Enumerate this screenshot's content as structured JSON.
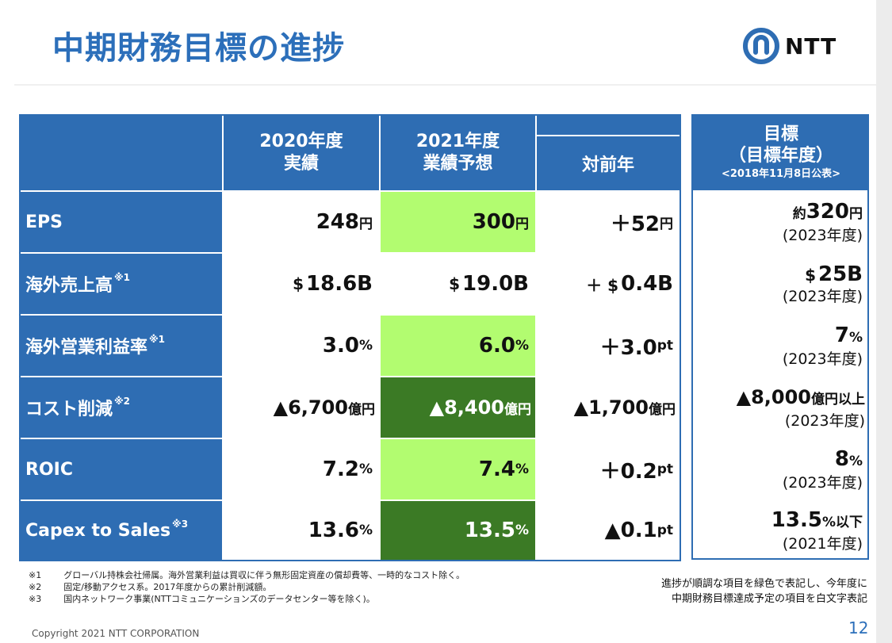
{
  "title": "中期財務目標の進捗",
  "logo_text": "NTT",
  "header": {
    "fy2020_line1": "2020年度",
    "fy2020_line2": "実績",
    "fy2021_line1": "2021年度",
    "fy2021_line2": "業績予想",
    "yoy": "対前年",
    "target_line1": "目標",
    "target_line2": "（目標年度）",
    "target_line3": "<2018年11月8日公表>"
  },
  "rows": [
    {
      "label": "EPS",
      "note": "",
      "fy2020": {
        "num": "248",
        "unit": "円"
      },
      "fy2021": {
        "num": "300",
        "unit": "円"
      },
      "yoy": {
        "num": "＋52",
        "unit": "円"
      },
      "target": {
        "prefix": "約",
        "num": "320",
        "unit": "円",
        "year": "(2023年度)"
      }
    },
    {
      "label": "海外売上高",
      "note": "※1",
      "fy2020": {
        "pre": "$",
        "num": "18.6B"
      },
      "fy2021": {
        "pre": "$",
        "num": "19.0B"
      },
      "yoy": {
        "pre": "＋ $",
        "num": "0.4B"
      },
      "target": {
        "pre": "$",
        "num": "25B",
        "year": "(2023年度)"
      }
    },
    {
      "label": "海外営業利益率",
      "note": "※1",
      "fy2020": {
        "num": "3.0",
        "unit": "%"
      },
      "fy2021": {
        "num": "6.0",
        "unit": "%"
      },
      "yoy": {
        "num": "＋3.0",
        "unit": "pt"
      },
      "target": {
        "num": "7",
        "unit": "%",
        "year": "(2023年度)"
      }
    },
    {
      "label": "コスト削減",
      "note": "※2",
      "fy2020": {
        "num": "▲6,700",
        "unit": "億円"
      },
      "fy2021": {
        "num": "▲8,400",
        "unit": "億円"
      },
      "yoy": {
        "num": "▲1,700",
        "unit": "億円"
      },
      "target": {
        "num": "▲8,000",
        "unit": "億円以上",
        "year": "(2023年度)"
      }
    },
    {
      "label": "ROIC",
      "note": "",
      "fy2020": {
        "num": "7.2",
        "unit": "%"
      },
      "fy2021": {
        "num": "7.4",
        "unit": "%"
      },
      "yoy": {
        "num": "＋0.2",
        "unit": "pt"
      },
      "target": {
        "num": "8",
        "unit": "%",
        "year": "(2023年度)"
      }
    },
    {
      "label": "Capex to Sales",
      "note": "※3",
      "fy2020": {
        "num": "13.6",
        "unit": "%"
      },
      "fy2021": {
        "num": "13.5",
        "unit": "%"
      },
      "yoy": {
        "num": "▲0.1",
        "unit": "pt"
      },
      "target": {
        "num": "13.5",
        "unit": "%以下",
        "year": "(2021年度)"
      }
    }
  ],
  "footnotes": [
    {
      "mark": "※1",
      "text": "グローバル持株会社帰属。海外営業利益は買収に伴う無形固定資産の償却費等、一時的なコスト除く。"
    },
    {
      "mark": "※2",
      "text": "固定/移動アクセス系。2017年度からの累計削減額。"
    },
    {
      "mark": "※3",
      "text": "国内ネットワーク事業(NTTコミュニケーションズのデータセンター等を除く)。"
    }
  ],
  "legend_note": {
    "line1": "進捗が順調な項目を緑色で表記し、今年度に",
    "line2": "中期財務目標達成予定の項目を白文字表記"
  },
  "copyright": "Copyright 2021 NTT CORPORATION",
  "page_number": "12",
  "colors": {
    "brand_blue": "#2e6db3",
    "title_blue": "#2c6fba",
    "on_track_green": "#b2fc70",
    "achieved_dark_green": "#3b7a25"
  }
}
